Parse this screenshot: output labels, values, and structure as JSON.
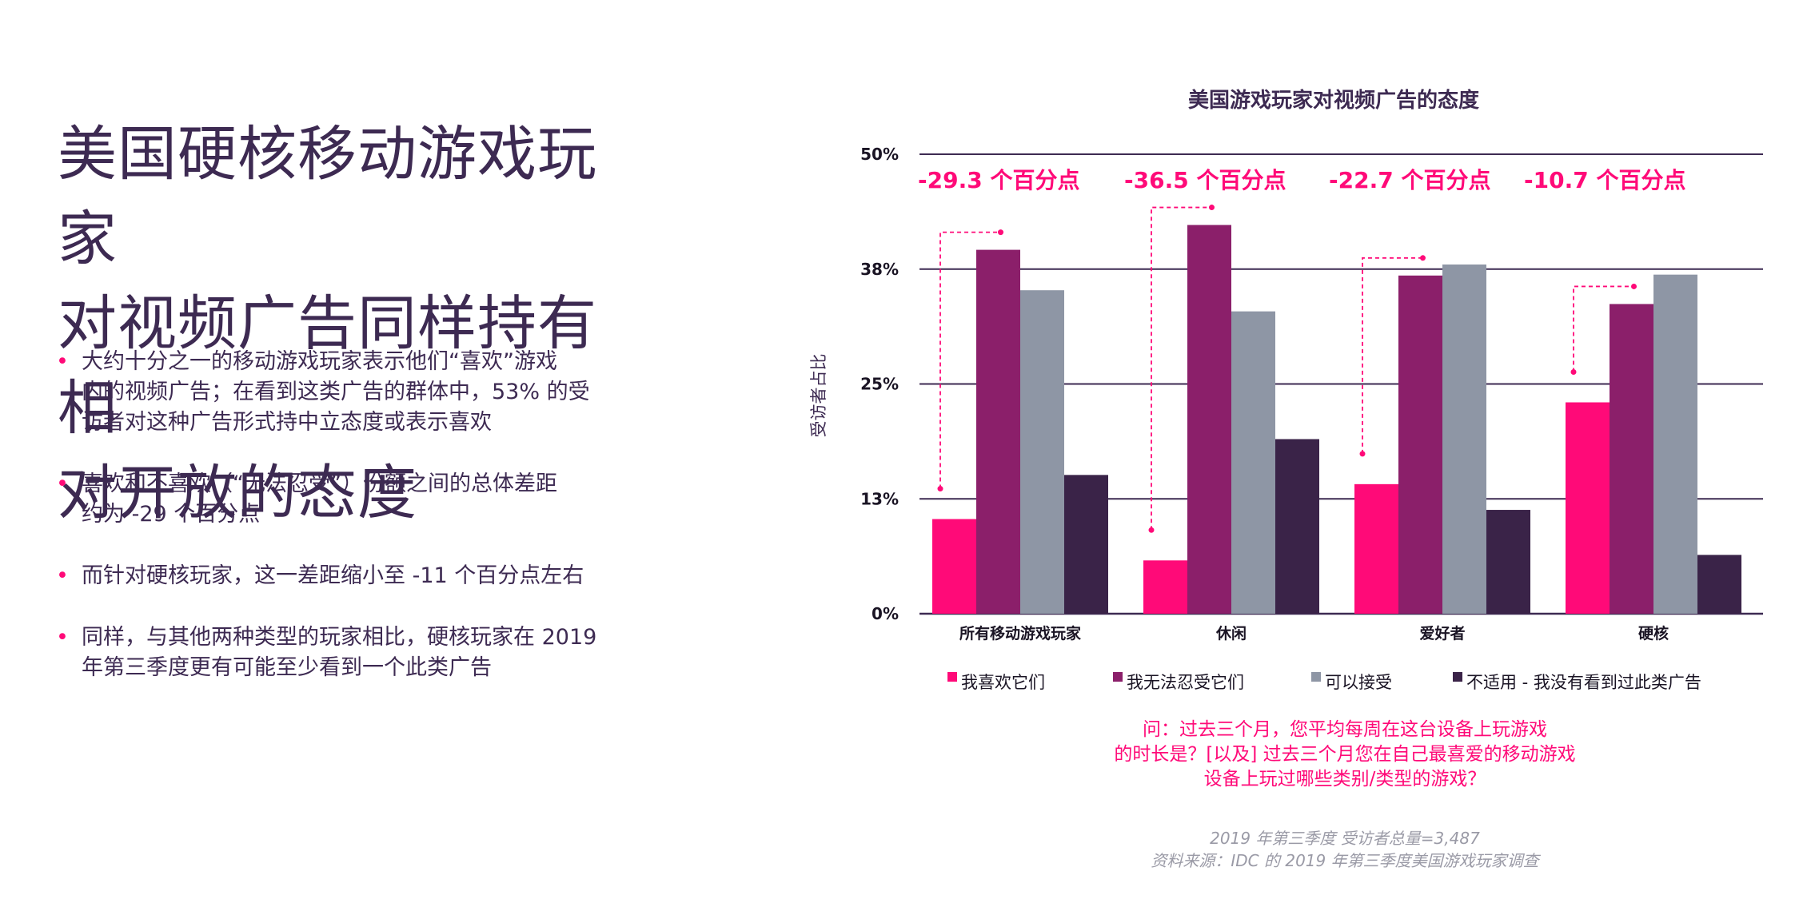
{
  "headline": {
    "lines": [
      "美国硬核移动游戏玩家",
      "对视频广告同样持有相",
      "对开放的态度"
    ]
  },
  "bullets": [
    {
      "lines": [
        "大约十分之一的移动游戏玩家表示他们“喜欢”游戏",
        "内的视频广告；在看到这类广告的群体中，53% 的受",
        "访者对这种广告形式持中立态度或表示喜欢"
      ]
    },
    {
      "lines": [
        "喜欢和不喜欢（“无法忍受”）份额之间的总体差距",
        "约为 -29 个百分点"
      ]
    },
    {
      "lines": [
        "而针对硬核玩家，这一差距缩小至 -11 个百分点左右"
      ]
    },
    {
      "lines": [
        "同样，与其他两种类型的玩家相比，硬核玩家在 2019",
        "年第三季度更有可能至少看到一个此类广告"
      ]
    }
  ],
  "bullet_marker": "•",
  "question": {
    "lines": [
      "问：过去三个月，您平均每周在这台设备上玩游戏",
      "的时长是？[以及] 过去三个月您在自己最喜爱的移动游戏",
      "设备上玩过哪些类别/类型的游戏？"
    ]
  },
  "footnote": {
    "lines": [
      "2019 年第三季度 受访者总量=3,487",
      "资料来源：IDC 的 2019 年第三季度美国游戏玩家调查"
    ]
  },
  "chart_data": {
    "type": "bar",
    "title": "美国游戏玩家对视频广告的态度",
    "ylabel": "受访者占比",
    "xlabel": "",
    "categories": [
      "所有移动游戏玩家",
      "休闲",
      "爱好者",
      "硬核"
    ],
    "ylim": [
      0,
      50
    ],
    "yticks": [
      0,
      12.5,
      25,
      37.5,
      50
    ],
    "ytick_labels": [
      "0%",
      "13%",
      "25%",
      "38%",
      "50%"
    ],
    "series": [
      {
        "name": "我喜欢它们",
        "color": "#ff0a78",
        "values": [
          10.3,
          5.8,
          14.1,
          23.0
        ]
      },
      {
        "name": "我无法忍受它们",
        "color": "#8b1f6a",
        "values": [
          39.6,
          42.3,
          36.8,
          33.7
        ]
      },
      {
        "name": "可以接受",
        "color": "#8e96a5",
        "values": [
          35.2,
          32.9,
          38.0,
          36.9
        ]
      },
      {
        "name": "不适用 - 我没有看到过此类广告",
        "color": "#3a2348",
        "values": [
          15.1,
          19.0,
          11.3,
          6.4
        ]
      }
    ],
    "annotations": [
      "-29.3 个百分点",
      "-36.5 个百分点",
      "-22.7 个百分点",
      "-10.7 个百分点"
    ],
    "annotation_color": "#ff0a78",
    "gridlines": true,
    "legend_position": "bottom"
  }
}
